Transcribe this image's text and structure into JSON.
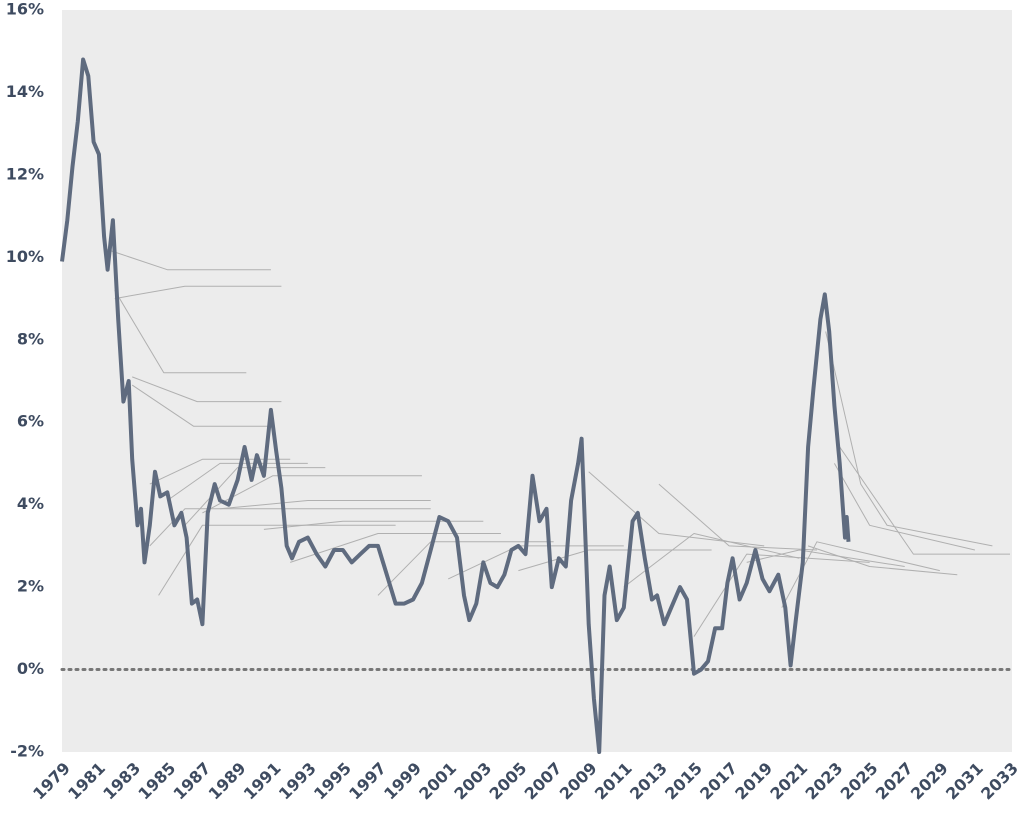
{
  "chart_data": {
    "type": "line",
    "xlim": [
      1979,
      2033
    ],
    "xticks": [
      1979,
      1981,
      1983,
      1985,
      1987,
      1989,
      1991,
      1993,
      1995,
      1997,
      1999,
      2001,
      2003,
      2005,
      2007,
      2009,
      2011,
      2013,
      2015,
      2017,
      2019,
      2021,
      2023,
      2025,
      2027,
      2029,
      2031,
      2033
    ],
    "ylim": [
      -2,
      16
    ],
    "yticks": [
      {
        "value": -2,
        "label": "-2%"
      },
      {
        "value": 0,
        "label": "0%"
      },
      {
        "value": 2,
        "label": "2%"
      },
      {
        "value": 4,
        "label": "4%"
      },
      {
        "value": 6,
        "label": "6%"
      },
      {
        "value": 8,
        "label": "8%"
      },
      {
        "value": 10,
        "label": "10%"
      },
      {
        "value": 12,
        "label": "12%"
      },
      {
        "value": 14,
        "label": "14%"
      },
      {
        "value": 16,
        "label": "16%"
      }
    ],
    "zero_line": true,
    "grid": false,
    "series": [
      {
        "color": "#5f6b7f",
        "width": 4,
        "x": [
          1979.0,
          1979.3,
          1979.6,
          1979.9,
          1980.2,
          1980.5,
          1980.8,
          1981.1,
          1981.4,
          1981.6,
          1981.9,
          1982.2,
          1982.5,
          1982.8,
          1983.0,
          1983.3,
          1983.5,
          1983.7,
          1984.0,
          1984.3,
          1984.6,
          1985.0,
          1985.4,
          1985.8,
          1986.1,
          1986.4,
          1986.7,
          1987.0,
          1987.3,
          1987.7,
          1988.0,
          1988.5,
          1989.0,
          1989.4,
          1989.8,
          1990.1,
          1990.5,
          1990.9,
          1991.2,
          1991.5,
          1991.8,
          1992.1,
          1992.5,
          1993.0,
          1993.5,
          1994.0,
          1994.5,
          1995.0,
          1995.5,
          1996.0,
          1996.5,
          1997.0,
          1997.5,
          1998.0,
          1998.5,
          1999.0,
          1999.5,
          2000.0,
          2000.5,
          2001.0,
          2001.5,
          2001.9,
          2002.2,
          2002.6,
          2003.0,
          2003.4,
          2003.8,
          2004.2,
          2004.6,
          2005.0,
          2005.4,
          2005.8,
          2006.2,
          2006.6,
          2006.9,
          2007.3,
          2007.7,
          2008.0,
          2008.4,
          2008.6,
          2009.0,
          2009.3,
          2009.6,
          2009.9,
          2010.2,
          2010.6,
          2011.0,
          2011.5,
          2011.8,
          2012.2,
          2012.6,
          2012.9,
          2013.3,
          2013.7,
          2014.2,
          2014.6,
          2015.0,
          2015.4,
          2015.8,
          2016.2,
          2016.6,
          2016.9,
          2017.2,
          2017.6,
          2018.0,
          2018.5,
          2018.9,
          2019.3,
          2019.8,
          2020.2,
          2020.5,
          2020.8,
          2021.2,
          2021.5,
          2021.8,
          2022.2,
          2022.45,
          2022.7,
          2023.0,
          2023.3,
          2023.6,
          2023.7,
          2023.8
        ],
        "values": [
          9.9,
          10.9,
          12.2,
          13.3,
          14.8,
          14.4,
          12.8,
          12.5,
          10.5,
          9.7,
          10.9,
          8.5,
          6.5,
          7.0,
          5.1,
          3.5,
          3.9,
          2.6,
          3.5,
          4.8,
          4.2,
          4.3,
          3.5,
          3.8,
          3.2,
          1.6,
          1.7,
          1.1,
          3.8,
          4.5,
          4.1,
          4.0,
          4.6,
          5.4,
          4.6,
          5.2,
          4.7,
          6.3,
          5.3,
          4.4,
          3.0,
          2.7,
          3.1,
          3.2,
          2.8,
          2.5,
          2.9,
          2.9,
          2.6,
          2.8,
          3.0,
          3.0,
          2.3,
          1.6,
          1.6,
          1.7,
          2.1,
          2.9,
          3.7,
          3.6,
          3.2,
          1.8,
          1.2,
          1.6,
          2.6,
          2.1,
          2.0,
          2.3,
          2.9,
          3.0,
          2.8,
          4.7,
          3.6,
          3.9,
          2.0,
          2.7,
          2.5,
          4.1,
          5.0,
          5.6,
          1.1,
          -0.7,
          -2.0,
          1.8,
          2.5,
          1.2,
          1.5,
          3.6,
          3.8,
          2.7,
          1.7,
          1.8,
          1.1,
          1.5,
          2.0,
          1.7,
          -0.1,
          0.0,
          0.2,
          1.0,
          1.0,
          2.1,
          2.7,
          1.7,
          2.1,
          2.9,
          2.2,
          1.9,
          2.3,
          1.5,
          0.1,
          1.2,
          2.6,
          5.4,
          6.8,
          8.5,
          9.1,
          8.2,
          6.4,
          5.0,
          3.2,
          3.7,
          3.1
        ]
      },
      {
        "color": "#b0b0b0",
        "width": 1,
        "x": [
          1981.5,
          1985,
          1990.9
        ],
        "values": [
          10.2,
          9.7,
          9.7
        ]
      },
      {
        "color": "#b0b0b0",
        "width": 1,
        "x": [
          1982,
          1986,
          1991.5
        ],
        "values": [
          9.0,
          9.3,
          9.3
        ]
      },
      {
        "color": "#b0b0b0",
        "width": 1,
        "x": [
          1982,
          1984.8,
          1989.5
        ],
        "values": [
          9.2,
          7.2,
          7.2
        ]
      },
      {
        "color": "#b0b0b0",
        "width": 1,
        "x": [
          1983,
          1986.7,
          1991.5
        ],
        "values": [
          7.1,
          6.5,
          6.5
        ]
      },
      {
        "color": "#b0b0b0",
        "width": 1,
        "x": [
          1983,
          1986.5,
          1990.9
        ],
        "values": [
          6.9,
          5.9,
          5.9
        ]
      },
      {
        "color": "#b0b0b0",
        "width": 1,
        "x": [
          1984,
          1987,
          1992
        ],
        "values": [
          4.5,
          5.1,
          5.1
        ]
      },
      {
        "color": "#b0b0b0",
        "width": 1,
        "x": [
          1985,
          1988,
          1993
        ],
        "values": [
          4.1,
          5.0,
          5.0
        ]
      },
      {
        "color": "#b0b0b0",
        "width": 1,
        "x": [
          1986,
          1989,
          1994
        ],
        "values": [
          3.5,
          4.9,
          4.9
        ]
      },
      {
        "color": "#b0b0b0",
        "width": 1,
        "x": [
          1987,
          1991,
          1999.5
        ],
        "values": [
          3.8,
          4.7,
          4.7
        ]
      },
      {
        "color": "#b0b0b0",
        "width": 1,
        "x": [
          1988,
          1993,
          2000
        ],
        "values": [
          3.9,
          4.1,
          4.1
        ]
      },
      {
        "color": "#b0b0b0",
        "width": 1,
        "x": [
          1984,
          1986,
          2000
        ],
        "values": [
          3.0,
          3.9,
          3.9
        ]
      },
      {
        "color": "#b0b0b0",
        "width": 1,
        "x": [
          1984.5,
          1987,
          1998
        ],
        "values": [
          1.8,
          3.5,
          3.5
        ]
      },
      {
        "color": "#b0b0b0",
        "width": 1,
        "x": [
          1990.5,
          1995,
          2003
        ],
        "values": [
          3.4,
          3.6,
          3.6
        ]
      },
      {
        "color": "#b0b0b0",
        "width": 1,
        "x": [
          1992,
          1997,
          2004
        ],
        "values": [
          2.6,
          3.3,
          3.3
        ]
      },
      {
        "color": "#b0b0b0",
        "width": 1,
        "x": [
          1997,
          2000,
          2007
        ],
        "values": [
          1.8,
          3.1,
          3.1
        ]
      },
      {
        "color": "#b0b0b0",
        "width": 1,
        "x": [
          2001,
          2005,
          2011
        ],
        "values": [
          2.2,
          3.0,
          3.0
        ]
      },
      {
        "color": "#b0b0b0",
        "width": 1,
        "x": [
          2005,
          2009,
          2016
        ],
        "values": [
          2.4,
          2.9,
          2.9
        ]
      },
      {
        "color": "#b0b0b0",
        "width": 1,
        "x": [
          2009,
          2013,
          2019
        ],
        "values": [
          4.8,
          3.3,
          3.0
        ]
      },
      {
        "color": "#b0b0b0",
        "width": 1,
        "x": [
          2011,
          2015,
          2021
        ],
        "values": [
          2.0,
          3.3,
          2.7
        ]
      },
      {
        "color": "#b0b0b0",
        "width": 1,
        "x": [
          2013,
          2017,
          2022
        ],
        "values": [
          4.5,
          3.0,
          2.9
        ]
      },
      {
        "color": "#b0b0b0",
        "width": 1,
        "x": [
          2015,
          2018,
          2025
        ],
        "values": [
          0.8,
          2.8,
          2.6
        ]
      },
      {
        "color": "#b0b0b0",
        "width": 1,
        "x": [
          2018,
          2021,
          2027
        ],
        "values": [
          2.6,
          2.9,
          2.5
        ]
      },
      {
        "color": "#b0b0b0",
        "width": 1,
        "x": [
          2020,
          2022,
          2029
        ],
        "values": [
          1.5,
          3.1,
          2.4
        ]
      },
      {
        "color": "#b0b0b0",
        "width": 1,
        "x": [
          2021.5,
          2025,
          2030
        ],
        "values": [
          3.0,
          2.5,
          2.3
        ]
      },
      {
        "color": "#b0b0b0",
        "width": 1,
        "x": [
          2022.5,
          2024.5,
          2026,
          2032
        ],
        "values": [
          8.2,
          4.5,
          3.5,
          3.0
        ]
      },
      {
        "color": "#b0b0b0",
        "width": 1,
        "x": [
          2023,
          2025,
          2031
        ],
        "values": [
          5.0,
          3.5,
          2.9
        ]
      },
      {
        "color": "#b0b0b0",
        "width": 1,
        "x": [
          2023.3,
          2027.5,
          2033
        ],
        "values": [
          5.4,
          2.8,
          2.8
        ]
      }
    ]
  }
}
